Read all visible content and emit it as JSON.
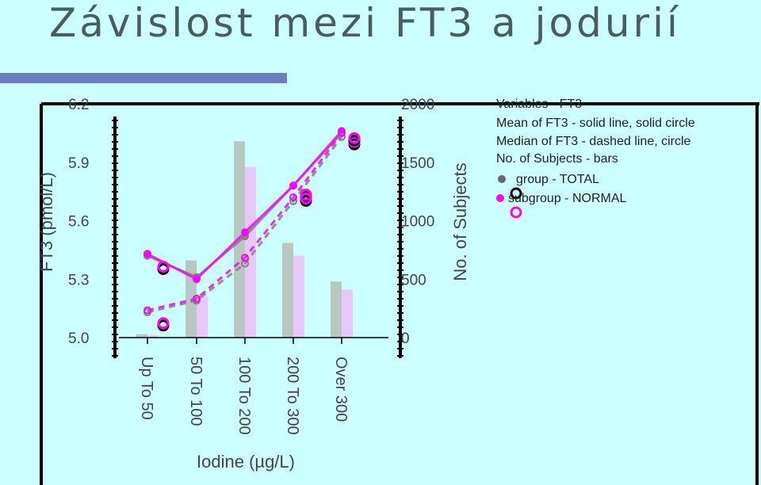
{
  "slide": {
    "title": "Závislost mezi FT3 a jodurií"
  },
  "colors": {
    "background": "#ccffff",
    "title_bar": "#6b7fbf",
    "total": "#808080",
    "normal": "#ff00ff",
    "bar_total": "#b8c8c0",
    "bar_normal": "#e8c8f8"
  },
  "chart_data": {
    "type": "line",
    "categories": [
      "Up To 50",
      "50 To 100",
      "100 To 200",
      "200 To 300",
      "Over 300"
    ],
    "xlabel": "Iodine (µg/L)",
    "ylabel": "FT3 (pmol/L)",
    "y2label": "No. of Subjects",
    "ylim": [
      5.0,
      6.2
    ],
    "yticks": [
      "6.2",
      "5.9",
      "5.6",
      "5.3",
      "5.0"
    ],
    "y2lim": [
      0,
      2000
    ],
    "y2ticks": [
      "2000",
      "1500",
      "1000",
      "500",
      "0"
    ],
    "legend": {
      "title": "Variables - FT3",
      "mean_desc": "Mean of FT3 - solid line, solid circle",
      "median_desc": "Median of FT3 - dashed line, circle",
      "count_desc": "No. of Subjects - bars",
      "group_total": "group - TOTAL",
      "group_normal": "subgroup - NORMAL"
    },
    "series": [
      {
        "name": "group - TOTAL",
        "stat": "mean",
        "values": [
          5.42,
          5.31,
          5.52,
          5.78,
          6.05
        ]
      },
      {
        "name": "subgroup - NORMAL",
        "stat": "mean",
        "values": [
          5.43,
          5.3,
          5.54,
          5.78,
          6.06
        ]
      },
      {
        "name": "group - TOTAL",
        "stat": "median",
        "values": [
          5.13,
          5.19,
          5.38,
          5.7,
          6.03
        ]
      },
      {
        "name": "subgroup - NORMAL",
        "stat": "median",
        "values": [
          5.14,
          5.2,
          5.41,
          5.72,
          6.05
        ]
      }
    ],
    "bars": [
      {
        "name": "group - TOTAL",
        "values": [
          30,
          660,
          1680,
          810,
          480
        ]
      },
      {
        "name": "subgroup - NORMAL",
        "values": [
          20,
          350,
          1460,
          700,
          410
        ]
      }
    ],
    "outliers": [
      {
        "category": "Up To 50",
        "value": 5.36
      },
      {
        "category": "Up To 50",
        "value": 5.07
      },
      {
        "category": "Over 300",
        "value": 6.0
      },
      {
        "category": "Over 300",
        "value": 6.02
      },
      {
        "category": "200 To 300",
        "value": 5.73
      },
      {
        "category": "200 To 300",
        "value": 5.71
      }
    ]
  }
}
